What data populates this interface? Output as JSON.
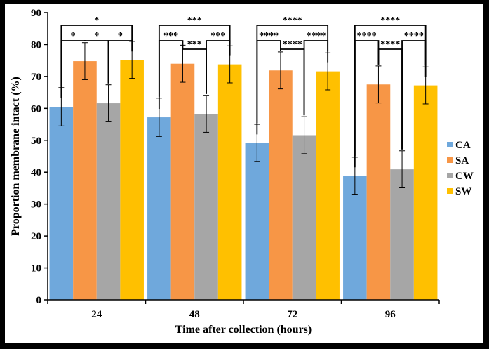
{
  "chart_data": {
    "type": "bar",
    "xlabel": "Time after collection (hours)",
    "ylabel": "Proportion membrane intact (%)",
    "ylim": [
      0,
      90
    ],
    "yticks": [
      0,
      10,
      20,
      30,
      40,
      50,
      60,
      70,
      80,
      90
    ],
    "categories": [
      "24",
      "48",
      "72",
      "96"
    ],
    "legend_position": "right",
    "grid": false,
    "series": [
      {
        "name": "CA",
        "color": "#6FA8DC",
        "values": [
          60.5,
          57.2,
          49.2,
          38.9
        ],
        "errors": [
          6.0,
          6.0,
          5.8,
          5.8
        ]
      },
      {
        "name": "SA",
        "color": "#F79646",
        "values": [
          74.8,
          74.0,
          71.9,
          67.5
        ],
        "errors": [
          5.8,
          5.8,
          5.8,
          5.8
        ]
      },
      {
        "name": "CW",
        "color": "#A6A6A6",
        "values": [
          61.6,
          58.3,
          51.6,
          40.9
        ],
        "errors": [
          5.8,
          5.8,
          5.8,
          5.8
        ]
      },
      {
        "name": "SW",
        "color": "#FFC000",
        "values": [
          75.2,
          73.8,
          71.6,
          67.2
        ],
        "errors": [
          5.8,
          5.8,
          5.8,
          5.8
        ]
      }
    ],
    "significance": [
      {
        "group": 0,
        "from": 0,
        "to": 1,
        "label": "*",
        "level": 0
      },
      {
        "group": 0,
        "from": 1,
        "to": 2,
        "label": "*",
        "level": 0
      },
      {
        "group": 0,
        "from": 2,
        "to": 3,
        "label": "*",
        "level": 0
      },
      {
        "group": 0,
        "from": 0,
        "to": 3,
        "label": "*",
        "level": 1
      },
      {
        "group": 1,
        "from": 0,
        "to": 1,
        "label": "***",
        "level": 0
      },
      {
        "group": 1,
        "from": 1,
        "to": 2,
        "label": "***",
        "level": -1
      },
      {
        "group": 1,
        "from": 2,
        "to": 3,
        "label": "***",
        "level": 0
      },
      {
        "group": 1,
        "from": 0,
        "to": 3,
        "label": "***",
        "level": 1
      },
      {
        "group": 2,
        "from": 0,
        "to": 1,
        "label": "****",
        "level": 0
      },
      {
        "group": 2,
        "from": 1,
        "to": 2,
        "label": "****",
        "level": -1
      },
      {
        "group": 2,
        "from": 2,
        "to": 3,
        "label": "****",
        "level": 0
      },
      {
        "group": 2,
        "from": 0,
        "to": 3,
        "label": "****",
        "level": 1
      },
      {
        "group": 3,
        "from": 0,
        "to": 1,
        "label": "****",
        "level": 0
      },
      {
        "group": 3,
        "from": 1,
        "to": 2,
        "label": "****",
        "level": -1
      },
      {
        "group": 3,
        "from": 2,
        "to": 3,
        "label": "****",
        "level": 0
      },
      {
        "group": 3,
        "from": 0,
        "to": 3,
        "label": "****",
        "level": 1
      }
    ]
  }
}
